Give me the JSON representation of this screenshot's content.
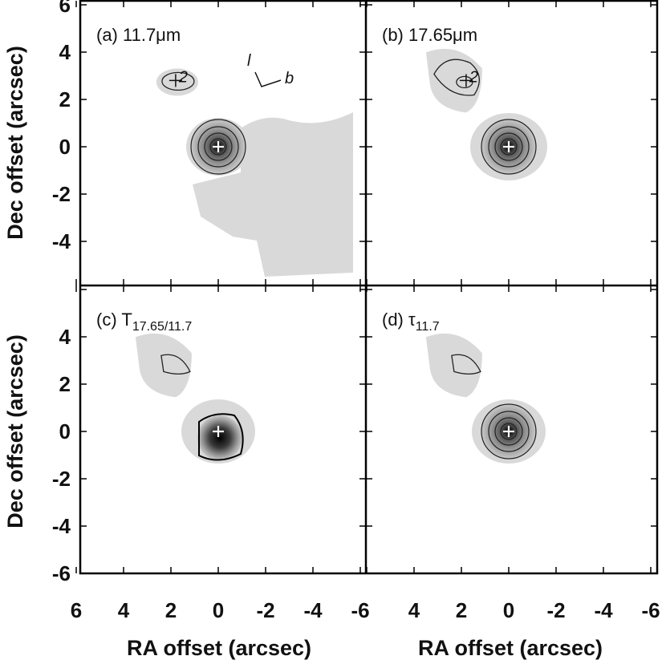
{
  "chart_data": {
    "type": "heatmap",
    "xlabel": "RA offset (arcsec)",
    "ylabel": "Dec offset (arcsec)",
    "xlim": [
      6,
      -6
    ],
    "ylim": [
      -6,
      6
    ],
    "x_ticks": [
      "6",
      "4",
      "2",
      "0",
      "-2",
      "-4",
      "-6"
    ],
    "y_ticks": [
      "6",
      "4",
      "2",
      "0",
      "-2",
      "-4",
      "-6"
    ],
    "panels": [
      {
        "id": "a",
        "label": "(a) 11.7μm"
      },
      {
        "id": "b",
        "label": "(b) 17.65μm"
      },
      {
        "id": "c",
        "label": "(c) T",
        "label_sub": "17.65/11.7"
      },
      {
        "id": "d",
        "label": "(d) τ",
        "label_sub": "11.7"
      }
    ],
    "sources": [
      {
        "name": "1",
        "ra": 0,
        "dec": 0
      },
      {
        "name": "2",
        "label": "2",
        "ra": 1.8,
        "dec": 2.8
      }
    ],
    "orientation": {
      "l": "l",
      "b": "b"
    },
    "grid": false
  }
}
